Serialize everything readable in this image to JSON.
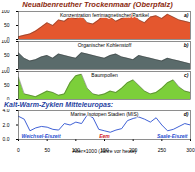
{
  "title": "Neualbenreuther Trockenmaar (Oberpfalz)",
  "chart_data": [
    {
      "type": "area",
      "title": "Konzentration ferrimagnetischer Partikel",
      "color": "#e4572e",
      "x": [
        0,
        10,
        20,
        30,
        40,
        50,
        60,
        70,
        80,
        90,
        100,
        110,
        120,
        130,
        140,
        150,
        160,
        170,
        180,
        190,
        200,
        210,
        220,
        230,
        240,
        250,
        260,
        270,
        280,
        290,
        300
      ],
      "values": [
        10,
        15,
        20,
        30,
        45,
        60,
        50,
        70,
        65,
        80,
        75,
        85,
        60,
        55,
        70,
        90,
        80,
        65,
        75,
        85,
        95,
        70,
        60,
        80,
        85,
        75,
        90,
        80,
        70,
        65,
        60
      ],
      "xlim": [
        0,
        300
      ],
      "ylim": [
        0,
        100
      ],
      "yticks": [
        0,
        50,
        100
      ],
      "tick_labels": "y",
      "annotations": [
        {
          "text": "a)",
          "color": "#000000"
        }
      ]
    },
    {
      "type": "area",
      "title": "Organischer Kohlenstoff",
      "color": "#5a6b6b",
      "x": [
        0,
        10,
        20,
        30,
        40,
        50,
        60,
        70,
        80,
        90,
        100,
        110,
        120,
        130,
        140,
        150,
        160,
        170,
        180,
        190,
        200,
        210,
        220,
        230,
        240,
        250,
        260,
        270,
        280,
        290,
        300
      ],
      "values": [
        60,
        40,
        30,
        35,
        45,
        50,
        40,
        55,
        50,
        45,
        40,
        60,
        55,
        50,
        45,
        40,
        50,
        55,
        45,
        40,
        35,
        50,
        45,
        40,
        35,
        30,
        40,
        35,
        30,
        25,
        20
      ],
      "xlim": [
        0,
        300
      ],
      "ylim": [
        0,
        100
      ],
      "yticks": [
        0,
        50,
        100
      ],
      "tick_labels": "y",
      "annotations": [
        {
          "text": "b)",
          "color": "#000000"
        }
      ]
    },
    {
      "type": "area",
      "title": "Baumpollen",
      "color": "#7ccf3a",
      "x": [
        0,
        10,
        20,
        30,
        40,
        50,
        60,
        70,
        80,
        90,
        100,
        110,
        120,
        130,
        140,
        150,
        160,
        170,
        180,
        190,
        200,
        210,
        220,
        230,
        240,
        250,
        260,
        270,
        280,
        290,
        300
      ],
      "values": [
        80,
        20,
        15,
        10,
        20,
        30,
        25,
        15,
        20,
        60,
        85,
        90,
        40,
        20,
        15,
        20,
        30,
        25,
        40,
        60,
        70,
        50,
        30,
        20,
        25,
        40,
        60,
        70,
        45,
        30,
        25
      ],
      "xlim": [
        0,
        300
      ],
      "ylim": [
        0,
        100
      ],
      "yticks": [
        0,
        50,
        100
      ],
      "tick_labels": "y",
      "annotations": [
        {
          "text": "c)",
          "color": "#000000"
        }
      ]
    },
    {
      "type": "line",
      "subtitle": "Kalt-Warm-Zyklen Mitteleuropas:",
      "title": "Marine Isotopen Stadien (MIS)",
      "color": "#2a4fd0",
      "x_label": "Alter×1000 (Jahre vor heute)",
      "x": [
        0,
        10,
        20,
        30,
        40,
        50,
        60,
        70,
        80,
        90,
        100,
        110,
        120,
        130,
        140,
        150,
        160,
        170,
        180,
        190,
        200,
        210,
        220,
        230,
        240,
        250,
        260,
        270,
        280,
        290,
        300
      ],
      "values": [
        3.2,
        2.8,
        1.2,
        1.6,
        1.8,
        1.7,
        1.4,
        1.3,
        2.2,
        2.0,
        2.4,
        2.2,
        3.4,
        3.0,
        1.4,
        1.2,
        1.0,
        1.3,
        1.5,
        2.6,
        2.9,
        3.1,
        2.8,
        2.4,
        3.0,
        2.0,
        1.2,
        1.4,
        1.8,
        2.2,
        2.0
      ],
      "xlim": [
        0,
        300
      ],
      "xticks": [
        0,
        50,
        100,
        150,
        200,
        250,
        300
      ],
      "ylim": [
        0,
        4
      ],
      "yticks": [
        0,
        2,
        4
      ],
      "annotations": [
        {
          "text": "d)",
          "color": "#000000"
        },
        {
          "text": "Weichsel-Eiszeit",
          "color": "#2a4fd0"
        },
        {
          "text": "Eem",
          "color": "#d0202a"
        },
        {
          "text": "Saale-Eiszeit",
          "color": "#2a4fd0"
        }
      ]
    }
  ]
}
